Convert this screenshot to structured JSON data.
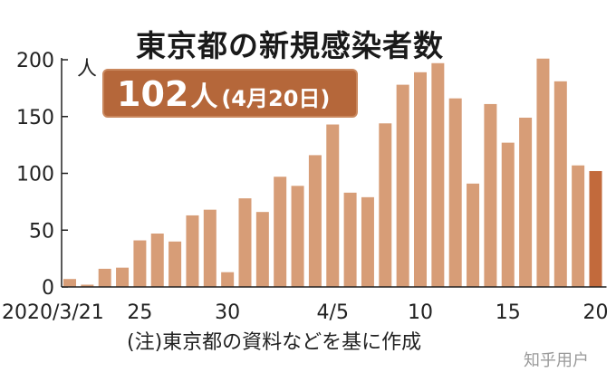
{
  "chart_data": {
    "type": "bar",
    "title": "東京都の新規感染者数",
    "ylabel": "人",
    "ylim": [
      0,
      200
    ],
    "yticks": [
      0,
      50,
      100,
      150,
      200
    ],
    "x_start_date": "2020/3/21",
    "x_end_date": "2020/4/20",
    "xtick_labels": [
      {
        "date": "2020/3/21",
        "label": "2020/3/21"
      },
      {
        "date": "2020/3/25",
        "label": "25"
      },
      {
        "date": "2020/3/30",
        "label": "30"
      },
      {
        "date": "2020/4/5",
        "label": "4/5"
      },
      {
        "date": "2020/4/10",
        "label": "10"
      },
      {
        "date": "2020/4/15",
        "label": "15"
      },
      {
        "date": "2020/4/20",
        "label": "20"
      }
    ],
    "values": [
      7,
      2,
      16,
      17,
      41,
      47,
      40,
      63,
      68,
      13,
      78,
      66,
      97,
      89,
      116,
      143,
      83,
      79,
      144,
      178,
      189,
      197,
      166,
      91,
      161,
      127,
      149,
      201,
      181,
      107,
      102
    ],
    "bar_color": "#d79d77",
    "highlight_color": "#c26a3c",
    "highlight_date": "2020/4/20",
    "callout": {
      "value": "102",
      "unit": "人",
      "date": "(4月20日)"
    },
    "note": "(注)東京都の資料などを基に作成"
  },
  "colors": {
    "callout_bg": "#b5673a",
    "axis": "#222222"
  },
  "watermark": "知乎用户"
}
